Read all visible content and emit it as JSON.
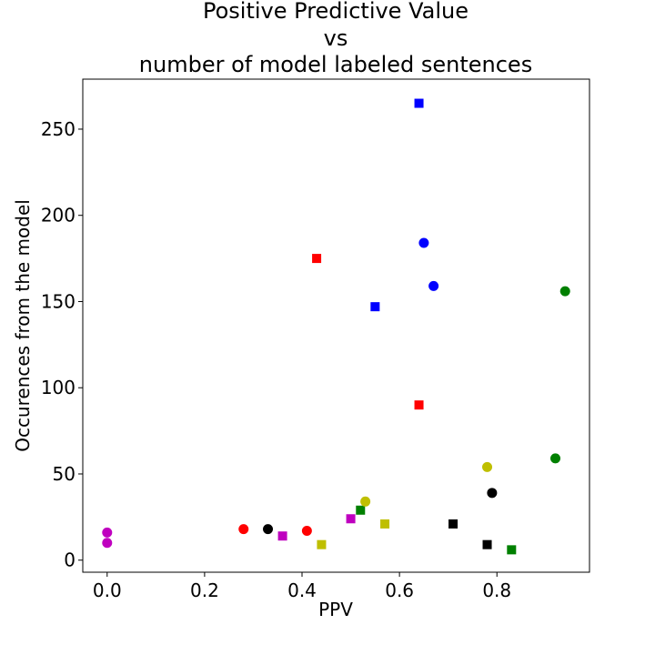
{
  "chart_data": {
    "type": "scatter",
    "title_lines": [
      "Positive Predictive Value",
      "vs",
      "number of model labeled sentences"
    ],
    "xlabel": "PPV",
    "ylabel": "Occurences from the model",
    "xlim": [
      -0.05,
      0.99
    ],
    "ylim": [
      -7,
      279
    ],
    "xticks": [
      0.0,
      0.2,
      0.4,
      0.6,
      0.8
    ],
    "xtick_labels": [
      "0.0",
      "0.2",
      "0.4",
      "0.6",
      "0.8"
    ],
    "yticks": [
      0,
      50,
      100,
      150,
      200,
      250
    ],
    "ytick_labels": [
      "0",
      "50",
      "100",
      "150",
      "200",
      "250"
    ],
    "grid": false,
    "legend": "none",
    "series": [
      {
        "marker": "circle",
        "color": "#ff0000",
        "points": [
          [
            0.28,
            18
          ],
          [
            0.41,
            17
          ]
        ]
      },
      {
        "marker": "square",
        "color": "#ff0000",
        "points": [
          [
            0.43,
            175
          ],
          [
            0.64,
            90
          ]
        ]
      },
      {
        "marker": "circle",
        "color": "#000000",
        "points": [
          [
            0.33,
            18
          ],
          [
            0.79,
            39
          ]
        ]
      },
      {
        "marker": "square",
        "color": "#000000",
        "points": [
          [
            0.71,
            21
          ],
          [
            0.78,
            9
          ]
        ]
      },
      {
        "marker": "circle",
        "color": "#0000ff",
        "points": [
          [
            0.65,
            184
          ],
          [
            0.67,
            159
          ]
        ]
      },
      {
        "marker": "square",
        "color": "#0000ff",
        "points": [
          [
            0.55,
            147
          ],
          [
            0.64,
            265
          ]
        ]
      },
      {
        "marker": "circle",
        "color": "#008000",
        "points": [
          [
            0.92,
            59
          ],
          [
            0.94,
            156
          ]
        ]
      },
      {
        "marker": "square",
        "color": "#008000",
        "points": [
          [
            0.52,
            29
          ],
          [
            0.83,
            6
          ]
        ]
      },
      {
        "marker": "circle",
        "color": "#bfbf00",
        "points": [
          [
            0.53,
            34
          ],
          [
            0.78,
            54
          ]
        ]
      },
      {
        "marker": "square",
        "color": "#bfbf00",
        "points": [
          [
            0.44,
            9
          ],
          [
            0.57,
            21
          ]
        ]
      },
      {
        "marker": "circle",
        "color": "#bf00bf",
        "points": [
          [
            0.0,
            16
          ],
          [
            0.0,
            10
          ]
        ]
      },
      {
        "marker": "square",
        "color": "#bf00bf",
        "points": [
          [
            0.36,
            14
          ],
          [
            0.5,
            24
          ]
        ]
      }
    ]
  }
}
